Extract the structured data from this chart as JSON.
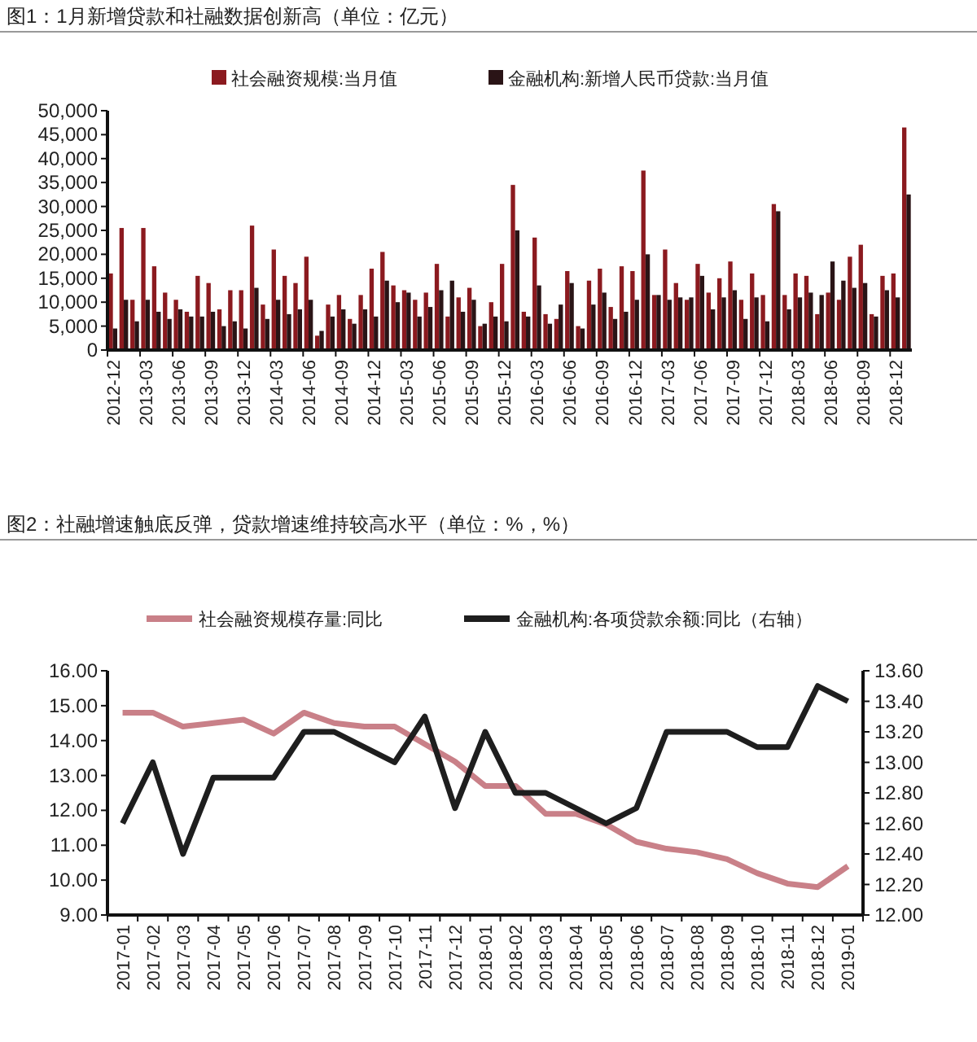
{
  "chart_data": [
    {
      "type": "bar",
      "title": "图1：1月新增贷款和社融数据创新高（单位：亿元）",
      "categories": [
        "2012-12",
        null,
        null,
        "2013-03",
        null,
        null,
        "2013-06",
        null,
        null,
        "2013-09",
        null,
        null,
        "2013-12",
        null,
        null,
        "2014-03",
        null,
        null,
        "2014-06",
        null,
        null,
        "2014-09",
        null,
        null,
        "2014-12",
        null,
        null,
        "2015-03",
        null,
        null,
        "2015-06",
        null,
        null,
        "2015-09",
        null,
        null,
        "2015-12",
        null,
        null,
        "2016-03",
        null,
        null,
        "2016-06",
        null,
        null,
        "2016-09",
        null,
        null,
        "2016-12",
        null,
        null,
        "2017-03",
        null,
        null,
        "2017-06",
        null,
        null,
        "2017-09",
        null,
        null,
        "2017-12",
        null,
        null,
        "2018-03",
        null,
        null,
        "2018-06",
        null,
        null,
        "2018-09",
        null,
        null,
        "2018-12",
        null
      ],
      "series": [
        {
          "name": "社会融资规模:当月值",
          "color": "#8b1a1f",
          "values": [
            16000,
            25500,
            10500,
            25500,
            17500,
            12000,
            10500,
            8000,
            15500,
            14000,
            8500,
            12500,
            12500,
            26000,
            9500,
            21000,
            15500,
            14000,
            19500,
            3000,
            9500,
            11500,
            6500,
            11500,
            17000,
            20500,
            13500,
            12500,
            10500,
            12000,
            18000,
            7000,
            11000,
            13000,
            5000,
            10000,
            18000,
            34500,
            8000,
            23500,
            7500,
            6500,
            16500,
            5000,
            14500,
            17000,
            9000,
            17500,
            16500,
            37500,
            11500,
            21000,
            14000,
            10500,
            18000,
            12000,
            15000,
            18500,
            10500,
            16000,
            11500,
            30500,
            11500,
            16000,
            15500,
            7500,
            12000,
            10500,
            19500,
            22000,
            7500,
            15500,
            16000,
            46500
          ]
        },
        {
          "name": "金融机构:新增人民币贷款:当月值",
          "color": "#2a1416",
          "values": [
            4500,
            10500,
            6000,
            10500,
            8000,
            6500,
            8500,
            7000,
            7000,
            8000,
            5000,
            6000,
            4500,
            13000,
            6500,
            10500,
            7500,
            8500,
            10500,
            4000,
            7000,
            8500,
            5500,
            8500,
            7000,
            14500,
            10000,
            12000,
            7000,
            9000,
            12500,
            14500,
            8000,
            10500,
            5500,
            7000,
            6000,
            25000,
            7000,
            13500,
            5500,
            9500,
            14000,
            4500,
            9500,
            12000,
            6500,
            8000,
            10500,
            20000,
            11500,
            10500,
            11000,
            11000,
            15500,
            8500,
            11000,
            12500,
            6500,
            11000,
            6000,
            29000,
            8500,
            11000,
            12000,
            11500,
            18500,
            14500,
            13000,
            14000,
            7000,
            12500,
            11000,
            32500
          ]
        }
      ],
      "ylim": [
        0,
        50000
      ],
      "yticks": [
        {
          "value": 0,
          "label": "0"
        },
        {
          "value": 5000,
          "label": "5,000"
        },
        {
          "value": 10000,
          "label": "10,000"
        },
        {
          "value": 15000,
          "label": "15,000"
        },
        {
          "value": 20000,
          "label": "20,000"
        },
        {
          "value": 25000,
          "label": "25,000"
        },
        {
          "value": 30000,
          "label": "30,000"
        },
        {
          "value": 35000,
          "label": "35,000"
        },
        {
          "value": 40000,
          "label": "40,000"
        },
        {
          "value": 45000,
          "label": "45,000"
        },
        {
          "value": 50000,
          "label": "50,000"
        }
      ],
      "legend": "top",
      "grid": false
    },
    {
      "type": "line",
      "title": "图2：社融增速触底反弹，贷款增速维持较高水平（单位：%，%）",
      "categories": [
        "2017-01",
        "2017-02",
        "2017-03",
        "2017-04",
        "2017-05",
        "2017-06",
        "2017-07",
        "2017-08",
        "2017-09",
        "2017-10",
        "2017-11",
        "2017-12",
        "2018-01",
        "2018-02",
        "2018-03",
        "2018-04",
        "2018-05",
        "2018-06",
        "2018-07",
        "2018-08",
        "2018-09",
        "2018-10",
        "2018-11",
        "2018-12",
        "2019-01"
      ],
      "series": [
        {
          "name": "社会融资规模存量:同比",
          "color": "#c98088",
          "values": [
            14.8,
            14.8,
            14.4,
            14.5,
            14.6,
            14.2,
            14.8,
            14.5,
            14.4,
            14.4,
            13.9,
            13.4,
            12.7,
            12.7,
            11.9,
            11.9,
            11.6,
            11.1,
            10.9,
            10.8,
            10.6,
            10.2,
            9.9,
            9.8,
            10.4
          ]
        },
        {
          "name": "金融机构:各项贷款余额:同比（右轴）",
          "color": "#1e1e1e",
          "axis": "y2",
          "values": [
            12.6,
            13.0,
            12.4,
            12.9,
            12.9,
            12.9,
            13.2,
            13.2,
            13.1,
            13.0,
            13.3,
            12.7,
            13.2,
            12.8,
            12.8,
            12.7,
            12.6,
            12.7,
            13.2,
            13.2,
            13.2,
            13.1,
            13.1,
            13.5,
            13.4
          ]
        }
      ],
      "ylim": [
        9,
        16
      ],
      "yticks": [
        {
          "value": 9,
          "label": "9.00"
        },
        {
          "value": 10,
          "label": "10.00"
        },
        {
          "value": 11,
          "label": "11.00"
        },
        {
          "value": 12,
          "label": "12.00"
        },
        {
          "value": 13,
          "label": "13.00"
        },
        {
          "value": 14,
          "label": "14.00"
        },
        {
          "value": 15,
          "label": "15.00"
        },
        {
          "value": 16,
          "label": "16.00"
        }
      ],
      "y2lim": [
        12,
        13.6
      ],
      "y2ticks": [
        {
          "value": 12,
          "label": "12.00"
        },
        {
          "value": 12.2,
          "label": "12.20"
        },
        {
          "value": 12.4,
          "label": "12.40"
        },
        {
          "value": 12.6,
          "label": "12.60"
        },
        {
          "value": 12.8,
          "label": "12.80"
        },
        {
          "value": 13,
          "label": "13.00"
        },
        {
          "value": 13.2,
          "label": "13.20"
        },
        {
          "value": 13.4,
          "label": "13.40"
        },
        {
          "value": 13.6,
          "label": "13.60"
        }
      ],
      "legend": "top",
      "grid": false,
      "marker": "none",
      "line_style": "solid"
    }
  ]
}
